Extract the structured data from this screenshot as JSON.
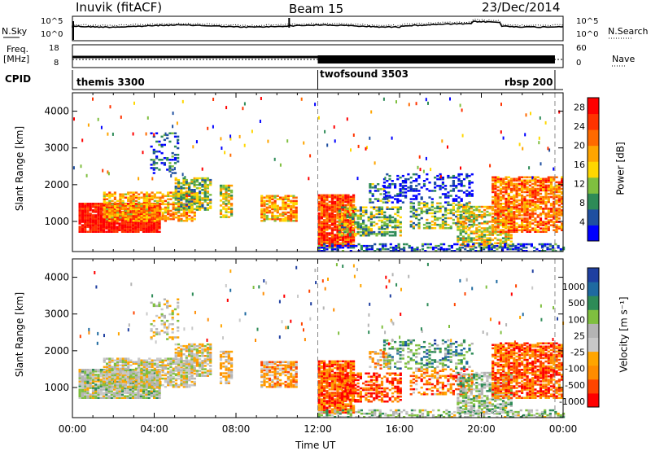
{
  "header": {
    "station": "Inuvik (fitACF)",
    "beam": "Beam 15",
    "date": "23/Dec/2014"
  },
  "strips": {
    "nsky_label": "N.Sky",
    "nsearch_label": "N.Search",
    "freq_label_1": "Freq.",
    "freq_label_2": "[MHz]",
    "nave_label": "Nave",
    "cpid_label": "CPID",
    "nsky_ticks_left": [
      "10^5",
      "10^0"
    ],
    "nsky_ticks_right": [
      "10^5",
      "10^0"
    ],
    "freq_ticks_left": [
      "18",
      "8"
    ],
    "nave_ticks_right": [
      "60",
      "0"
    ]
  },
  "cpid_segments": [
    {
      "name": "themis 3300",
      "start_hour": 0
    },
    {
      "name": "twofsound 3503",
      "start_hour": 12
    },
    {
      "name": "rbsp 200",
      "start_hour": 23.6
    }
  ],
  "colors": {
    "power": [
      "#0000ff",
      "#1f4fa0",
      "#2e8b57",
      "#7fbf3f",
      "#ffd700",
      "#ffa500",
      "#ff6a00",
      "#ff3300",
      "#ff0000"
    ],
    "velocity": [
      "#ff0000",
      "#ff4500",
      "#ff8c00",
      "#ffa500",
      "#c8c8c8",
      "#b4b4b4",
      "#7fbf3f",
      "#2e8b57",
      "#1f6aa0",
      "#1f3fa0"
    ]
  },
  "chart_data": [
    {
      "type": "heatmap",
      "title": "",
      "xlabel": "Time UT",
      "ylabel": "Slant Range [km]",
      "xlim": [
        0,
        24
      ],
      "ylim": [
        180,
        4500
      ],
      "x_ticks": [
        "00:00",
        "04:00",
        "08:00",
        "12:00",
        "16:00",
        "20:00",
        "00:00"
      ],
      "y_ticks": [
        "1000",
        "2000",
        "3000",
        "4000"
      ],
      "colorbar_label": "Power [dB]",
      "colorbar_ticks": [
        "4",
        "8",
        "12",
        "16",
        "20",
        "24",
        "28"
      ],
      "colorbar_range": [
        0,
        30
      ]
    },
    {
      "type": "heatmap",
      "title": "",
      "xlabel": "Time UT",
      "ylabel": "Slant Range [km]",
      "xlim": [
        0,
        24
      ],
      "ylim": [
        180,
        4500
      ],
      "x_ticks": [
        "00:00",
        "04:00",
        "08:00",
        "12:00",
        "16:00",
        "20:00",
        "00:00"
      ],
      "y_ticks": [
        "1000",
        "2000",
        "3000",
        "4000"
      ],
      "colorbar_label": "Velocity [m s⁻¹]",
      "colorbar_ticks": [
        "1000",
        "500",
        "100",
        "25",
        "-25",
        "-100",
        "-500",
        "-1000"
      ]
    }
  ]
}
